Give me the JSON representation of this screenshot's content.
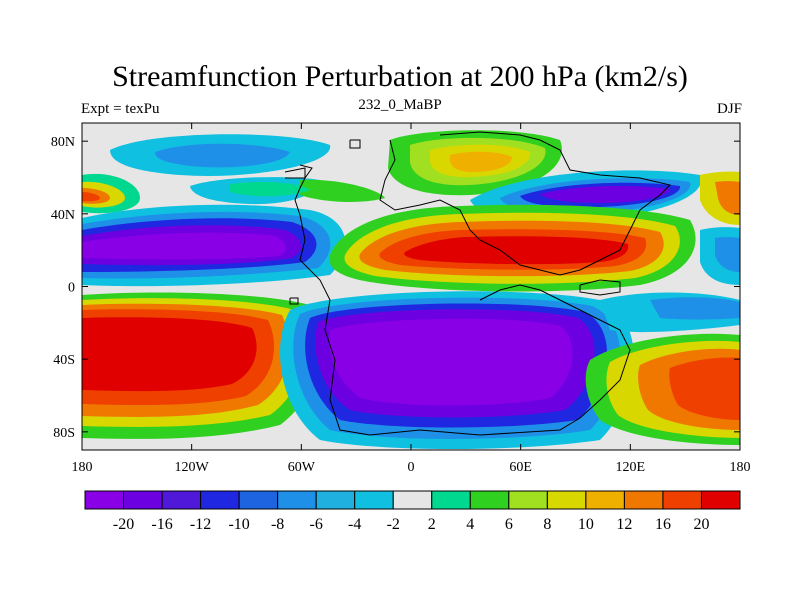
{
  "figure": {
    "title": "Streamfunction Perturbation at 200 hPa (km2/s)",
    "left_string": "Expt = texPu",
    "center_string": "232_0_MaBP",
    "right_string": "DJF"
  },
  "axes": {
    "lon_ticks": [
      "180",
      "120W",
      "60W",
      "0",
      "60E",
      "120E",
      "180"
    ],
    "lat_ticks": [
      "80N",
      "40N",
      "0",
      "40S",
      "80S"
    ],
    "lon_range": [
      -180,
      180
    ],
    "lat_range": [
      -90,
      90
    ]
  },
  "colorbar": {
    "labels": [
      "-20",
      "-16",
      "-12",
      "-10",
      "-8",
      "-6",
      "-4",
      "-2",
      "2",
      "4",
      "6",
      "8",
      "10",
      "12",
      "16",
      "20"
    ],
    "colors": [
      "#8a00e6",
      "#6d00e0",
      "#5018d8",
      "#1f28e0",
      "#1e64e0",
      "#1e90e8",
      "#20b0e0",
      "#10c0e0",
      "#e6e6e6",
      "#00d890",
      "#30d020",
      "#a0e020",
      "#d8d800",
      "#f0b000",
      "#f07800",
      "#f04000",
      "#e00000"
    ]
  },
  "background_color": "#e6e6e6"
}
